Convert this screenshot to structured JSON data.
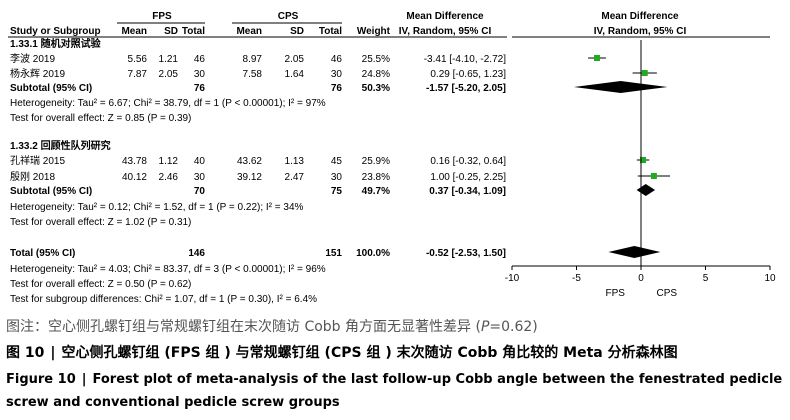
{
  "chart_data": {
    "type": "forest",
    "header": {
      "group1": "FPS",
      "group2": "CPS",
      "mean_difference": "Mean Difference",
      "study_or_subgroup": "Study or Subgroup",
      "mean": "Mean",
      "sd": "SD",
      "total": "Total",
      "weight": "Weight",
      "method": "IV, Random, 95% CI"
    },
    "subgroups": [
      {
        "title": "1.33.1 随机对照试验",
        "studies": [
          {
            "name": "李波 2019",
            "mean1": "5.56",
            "sd1": "1.21",
            "n1": "46",
            "mean2": "8.97",
            "sd2": "2.05",
            "n2": "46",
            "weight": "25.5%",
            "ci_text": "-3.41 [-4.10, -2.72]",
            "md": -3.41,
            "lo": -4.1,
            "hi": -2.72
          },
          {
            "name": "杨永辉 2019",
            "mean1": "7.87",
            "sd1": "2.05",
            "n1": "30",
            "mean2": "7.58",
            "sd2": "1.64",
            "n2": "30",
            "weight": "24.8%",
            "ci_text": "0.29 [-0.65, 1.23]",
            "md": 0.29,
            "lo": -0.65,
            "hi": 1.23
          }
        ],
        "subtotal": {
          "label": "Subtotal (95% CI)",
          "n1": "76",
          "n2": "76",
          "weight": "50.3%",
          "ci_text": "-1.57 [-5.20, 2.05]",
          "md": -1.57,
          "lo": -5.2,
          "hi": 2.05
        },
        "heterogeneity": "Heterogeneity: Tau² = 6.67; Chi² = 38.79, df = 1 (P < 0.00001); I² = 97%",
        "overall_effect": "Test for overall effect: Z = 0.85 (P = 0.39)"
      },
      {
        "title": "1.33.2 回顾性队列研究",
        "studies": [
          {
            "name": "孔祥瑞 2015",
            "mean1": "43.78",
            "sd1": "1.12",
            "n1": "40",
            "mean2": "43.62",
            "sd2": "1.13",
            "n2": "45",
            "weight": "25.9%",
            "ci_text": "0.16 [-0.32, 0.64]",
            "md": 0.16,
            "lo": -0.32,
            "hi": 0.64
          },
          {
            "name": "殷刚 2018",
            "mean1": "40.12",
            "sd1": "2.46",
            "n1": "30",
            "mean2": "39.12",
            "sd2": "2.47",
            "n2": "30",
            "weight": "23.8%",
            "ci_text": "1.00 [-0.25, 2.25]",
            "md": 1.0,
            "lo": -0.25,
            "hi": 2.25
          }
        ],
        "subtotal": {
          "label": "Subtotal (95% CI)",
          "n1": "70",
          "n2": "75",
          "weight": "49.7%",
          "ci_text": "0.37 [-0.34, 1.09]",
          "md": 0.37,
          "lo": -0.34,
          "hi": 1.09
        },
        "heterogeneity": "Heterogeneity: Tau² = 0.12; Chi² = 1.52, df = 1 (P = 0.22); I² = 34%",
        "overall_effect": "Test for overall effect: Z = 1.02 (P = 0.31)"
      }
    ],
    "total": {
      "label": "Total (95% CI)",
      "n1": "146",
      "n2": "151",
      "weight": "100.0%",
      "ci_text": "-0.52 [-2.53, 1.50]",
      "md": -0.52,
      "lo": -2.53,
      "hi": 1.5
    },
    "total_heterogeneity": "Heterogeneity: Tau² = 4.03; Chi² = 83.37, df = 3 (P < 0.00001); I² = 96%",
    "total_overall_effect": "Test for overall effect: Z = 0.50 (P = 0.62)",
    "subgroup_differences": "Test for subgroup differences: Chi² = 1.07, df = 1 (P = 0.30), I² = 6.4%",
    "axis": {
      "xlim": [
        -10,
        10
      ],
      "ticks": [
        -10,
        -5,
        0,
        5,
        10
      ],
      "left_label": "FPS",
      "right_label": "CPS"
    },
    "colors": {
      "study_marker": "#22aa22",
      "diamond": "#000000",
      "line": "#000000"
    }
  },
  "caption": {
    "note_prefix": "图注：空心侧孔螺钉组与常规螺钉组在末次随访 Cobb 角方面无显著性差异 (",
    "note_p": "P",
    "note_suffix": "=0.62)",
    "title_cn_label": "图 10",
    "separator": "|",
    "title_cn": "空心侧孔螺钉组 (FPS 组 ) 与常规螺钉组 (CPS 组 ) 末次随访 Cobb 角比较的 Meta 分析森林图",
    "title_en_label": "Figure 10",
    "title_en": "Forest plot of meta-analysis of the last follow-up Cobb angle between the fenestrated pedicle screw and conventional pedicle screw groups"
  }
}
